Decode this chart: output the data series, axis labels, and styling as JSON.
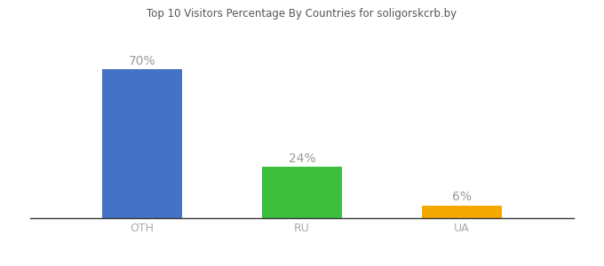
{
  "categories": [
    "OTH",
    "RU",
    "UA"
  ],
  "values": [
    70,
    24,
    6
  ],
  "bar_colors": [
    "#4472c4",
    "#3dbf3d",
    "#f5a800"
  ],
  "labels": [
    "70%",
    "24%",
    "6%"
  ],
  "title": "Top 10 Visitors Percentage By Countries for soligorskcrb.by",
  "ylim": [
    0,
    80
  ],
  "background_color": "#ffffff",
  "label_color": "#999999",
  "label_fontsize": 10,
  "tick_fontsize": 9,
  "tick_color": "#aaaaaa",
  "bar_width": 0.5,
  "x_positions": [
    1,
    2,
    3
  ],
  "xlim": [
    0.3,
    3.7
  ]
}
